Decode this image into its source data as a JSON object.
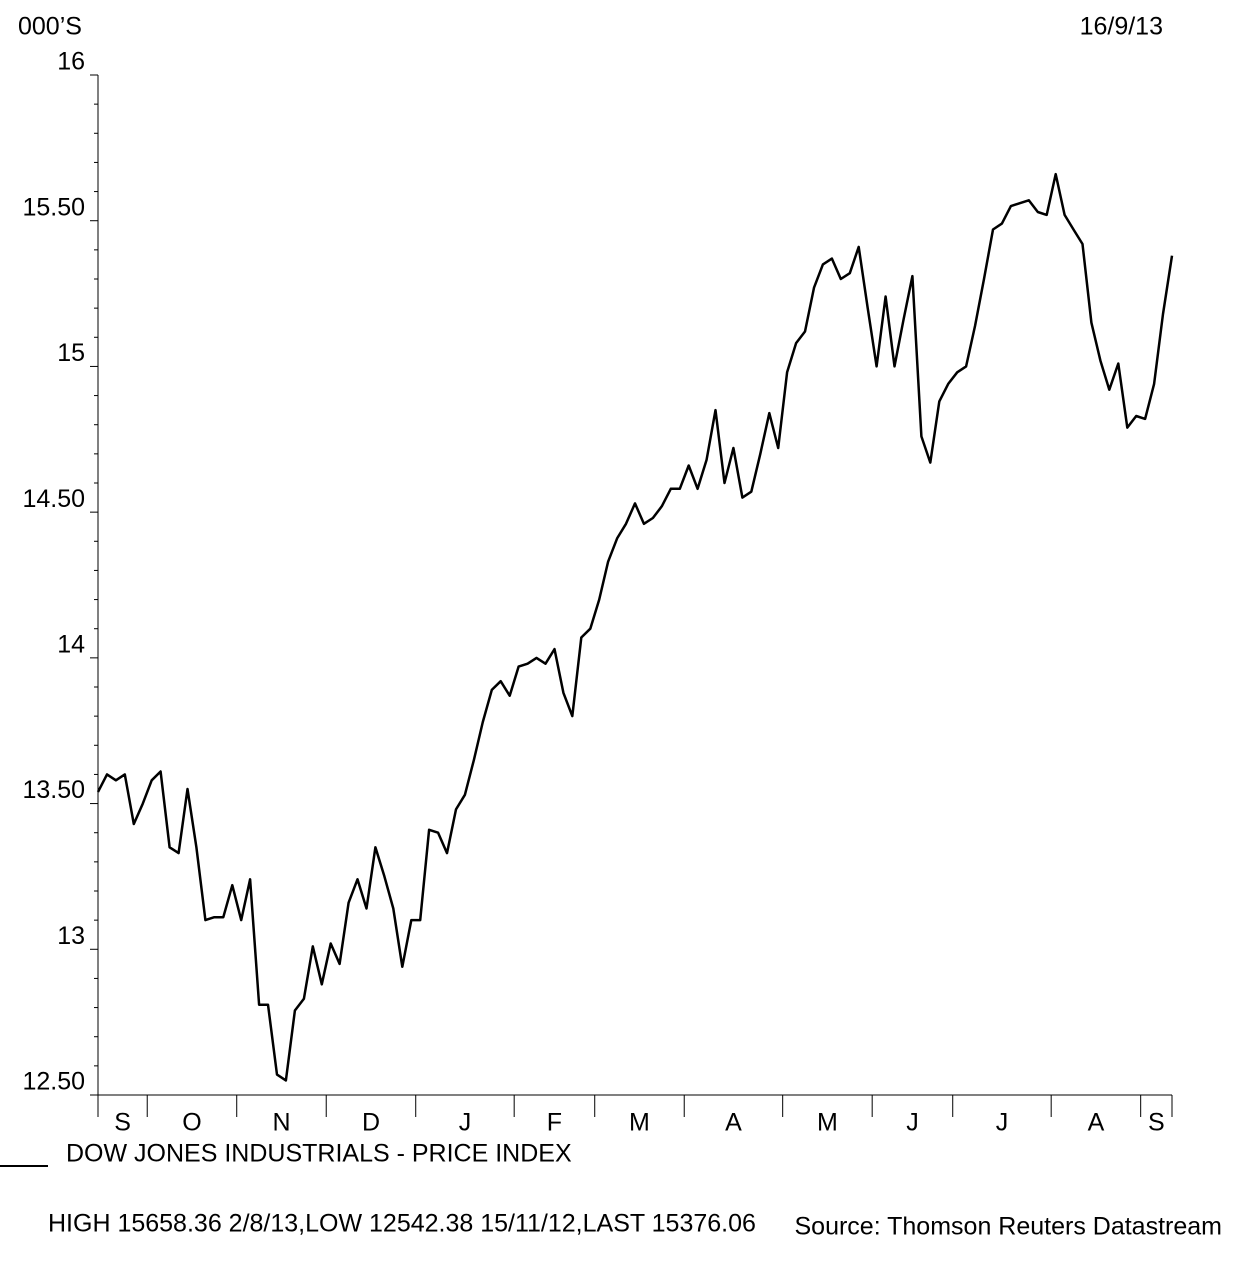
{
  "chart_data": {
    "type": "line",
    "unit_label": "000’S",
    "date": "16/9/13",
    "series_name": "DOW JONES INDUSTRIALS - PRICE INDEX",
    "footer": "HIGH 15658.36 2/8/13,LOW 12542.38 15/11/12,LAST 15376.06",
    "source": "Source: Thomson Reuters Datastream",
    "color": "#000000",
    "categories": [
      "S",
      "O",
      "N",
      "D",
      "J",
      "F",
      "M",
      "A",
      "M",
      "J",
      "J",
      "A",
      "S"
    ],
    "values": [
      [
        13.54,
        13.6,
        13.58,
        13.6,
        13.43,
        13.5
      ],
      [
        13.58,
        13.61,
        13.35,
        13.33,
        13.55,
        13.35,
        13.1,
        13.11,
        13.11,
        13.22
      ],
      [
        13.1,
        13.24,
        12.81,
        12.81,
        12.57,
        12.55,
        12.79,
        12.83,
        13.01,
        12.88
      ],
      [
        13.02,
        12.95,
        13.16,
        13.24,
        13.14,
        13.35,
        13.25,
        13.14,
        12.94,
        13.1
      ],
      [
        13.1,
        13.41,
        13.4,
        13.33,
        13.48,
        13.53,
        13.65,
        13.78,
        13.89,
        13.92,
        13.87
      ],
      [
        13.97,
        13.98,
        14.0,
        13.98,
        14.03,
        13.88,
        13.8,
        14.07,
        14.1
      ],
      [
        14.2,
        14.33,
        14.41,
        14.46,
        14.53,
        14.46,
        14.48,
        14.52,
        14.58,
        14.58
      ],
      [
        14.66,
        14.58,
        14.68,
        14.85,
        14.6,
        14.72,
        14.55,
        14.57,
        14.7,
        14.84,
        14.72
      ],
      [
        14.98,
        15.08,
        15.12,
        15.27,
        15.35,
        15.37,
        15.3,
        15.32,
        15.41,
        15.2
      ],
      [
        15.0,
        15.24,
        15.0,
        15.16,
        15.31,
        14.76,
        14.67,
        14.88,
        14.94
      ],
      [
        14.98,
        15.0,
        15.14,
        15.3,
        15.47,
        15.49,
        15.55,
        15.56,
        15.57,
        15.53,
        15.52
      ],
      [
        15.66,
        15.52,
        15.47,
        15.42,
        15.15,
        15.02,
        14.92,
        15.01,
        14.79,
        14.83
      ],
      [
        14.82,
        14.94,
        15.18,
        15.38
      ]
    ],
    "ylim": [
      12.5,
      16
    ],
    "yticks": [
      {
        "value": 12.5,
        "label": "12.50"
      },
      13,
      {
        "value": 13.5,
        "label": "13.50"
      },
      14,
      {
        "value": 14.5,
        "label": "14.50"
      },
      15,
      {
        "value": 15.5,
        "label": "15.50"
      },
      16
    ],
    "minor_yticks": [
      12.6,
      12.7,
      12.8,
      12.9,
      13.1,
      13.2,
      13.3,
      13.4,
      13.6,
      13.7,
      13.8,
      13.9,
      14.1,
      14.2,
      14.3,
      14.4,
      14.6,
      14.7,
      14.8,
      14.9,
      15.1,
      15.2,
      15.3,
      15.4,
      15.6,
      15.7,
      15.8,
      15.9
    ]
  }
}
